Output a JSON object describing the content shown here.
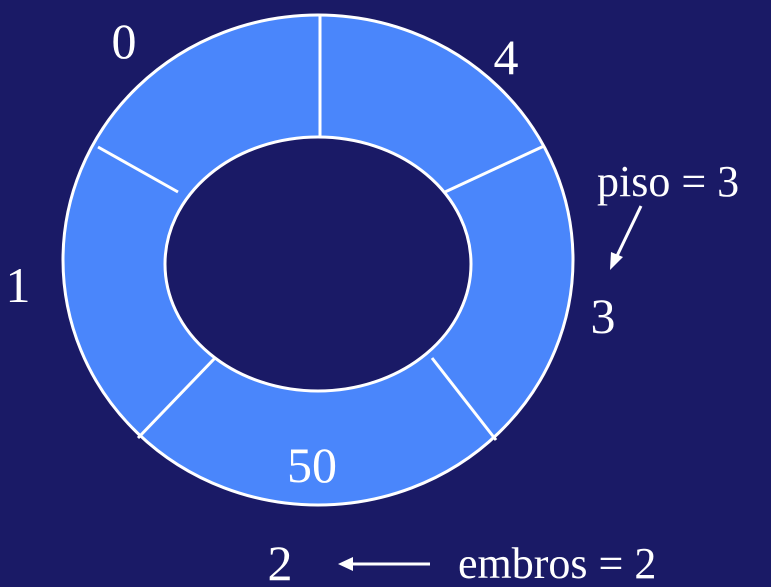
{
  "colors": {
    "background": "#1a1a66",
    "segment_fill": "#4a86fb",
    "hole_fill": "#1a1a66",
    "line": "#ffffff",
    "text": "#ffffff"
  },
  "ring": {
    "slot_labels": [
      "0",
      "4",
      "3",
      "2",
      "1"
    ],
    "slot_values": [
      "",
      "",
      "",
      "50",
      ""
    ]
  },
  "annotations": {
    "floor_label": "piso = 3",
    "front_label": "embros = 2"
  }
}
